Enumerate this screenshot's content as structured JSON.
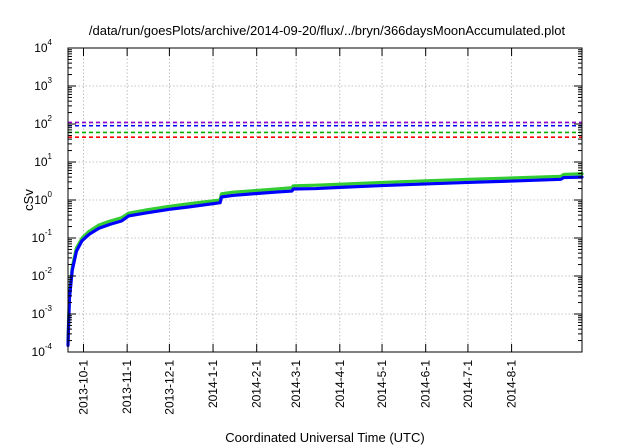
{
  "chart_data": {
    "type": "line",
    "title": "/data/run/goesPlots/archive/2014-09-20/flux/../bryn/366daysMoonAccumulated.plot",
    "xlabel": "Coordinated Universal Time (UTC)",
    "ylabel": "cSv",
    "yscale": "log",
    "ylim": [
      0.0001,
      10000
    ],
    "xlim": [
      "2013-09-20",
      "2014-09-20"
    ],
    "grid": true,
    "legend": "none",
    "x_tick_labels": [
      "2013-10-1",
      "2013-11-1",
      "2013-12-1",
      "2014-1-1",
      "2014-2-1",
      "2014-3-1",
      "2014-4-1",
      "2014-5-1",
      "2014-6-1",
      "2014-7-1",
      "2014-8-1"
    ],
    "x_ticks": [
      "2013-10-01",
      "2013-11-01",
      "2013-12-01",
      "2014-01-01",
      "2014-02-01",
      "2014-03-01",
      "2014-04-01",
      "2014-05-01",
      "2014-06-01",
      "2014-07-01",
      "2014-08-01"
    ],
    "y_ticks": [
      {
        "base": "10",
        "exp": "-4",
        "value": 0.0001
      },
      {
        "base": "10",
        "exp": "-3",
        "value": 0.001
      },
      {
        "base": "10",
        "exp": "-2",
        "value": 0.01
      },
      {
        "base": "10",
        "exp": "-1",
        "value": 0.1
      },
      {
        "base": "10",
        "exp": "0",
        "value": 1
      },
      {
        "base": "10",
        "exp": "1",
        "value": 10
      },
      {
        "base": "10",
        "exp": "2",
        "value": 100
      },
      {
        "base": "10",
        "exp": "3",
        "value": 1000
      },
      {
        "base": "10",
        "exp": "4",
        "value": 10000
      }
    ],
    "thresholds": [
      {
        "value": 110,
        "color": "#9400d3"
      },
      {
        "value": 90,
        "color": "#0000ff"
      },
      {
        "value": 60,
        "color": "#00b000"
      },
      {
        "value": 45,
        "color": "#ff0000"
      }
    ],
    "series": [
      {
        "color": "#33cc33",
        "x": [
          "2013-09-20",
          "2013-09-21",
          "2013-09-23",
          "2013-09-26",
          "2013-09-30",
          "2013-10-05",
          "2013-10-12",
          "2013-10-20",
          "2013-10-28",
          "2013-11-02",
          "2013-11-15",
          "2013-12-01",
          "2013-12-15",
          "2014-01-01",
          "2014-01-06",
          "2014-01-07",
          "2014-01-15",
          "2014-02-01",
          "2014-02-15",
          "2014-02-26",
          "2014-02-27",
          "2014-03-15",
          "2014-04-01",
          "2014-05-01",
          "2014-06-01",
          "2014-07-01",
          "2014-08-01",
          "2014-09-05",
          "2014-09-07",
          "2014-09-20"
        ],
        "y": [
          0.0002,
          0.003,
          0.017,
          0.055,
          0.1,
          0.15,
          0.22,
          0.28,
          0.34,
          0.45,
          0.55,
          0.68,
          0.8,
          0.95,
          1.0,
          1.45,
          1.6,
          1.78,
          1.95,
          2.1,
          2.35,
          2.45,
          2.6,
          2.9,
          3.2,
          3.5,
          3.8,
          4.2,
          4.7,
          4.9
        ]
      },
      {
        "color": "#0000ff",
        "x": [
          "2013-09-20",
          "2013-09-21",
          "2013-09-23",
          "2013-09-26",
          "2013-09-30",
          "2013-10-05",
          "2013-10-12",
          "2013-10-20",
          "2013-10-28",
          "2013-11-02",
          "2013-11-15",
          "2013-12-01",
          "2013-12-15",
          "2014-01-01",
          "2014-01-06",
          "2014-01-07",
          "2014-01-15",
          "2014-02-01",
          "2014-02-15",
          "2014-02-26",
          "2014-02-27",
          "2014-03-15",
          "2014-04-01",
          "2014-05-01",
          "2014-06-01",
          "2014-07-01",
          "2014-08-01",
          "2014-09-05",
          "2014-09-07",
          "2014-09-20"
        ],
        "y": [
          0.00015,
          0.0025,
          0.014,
          0.045,
          0.085,
          0.125,
          0.18,
          0.23,
          0.28,
          0.38,
          0.46,
          0.57,
          0.66,
          0.8,
          0.85,
          1.2,
          1.32,
          1.48,
          1.62,
          1.72,
          1.95,
          2.0,
          2.15,
          2.4,
          2.65,
          2.9,
          3.15,
          3.5,
          3.9,
          4.0
        ]
      }
    ]
  }
}
